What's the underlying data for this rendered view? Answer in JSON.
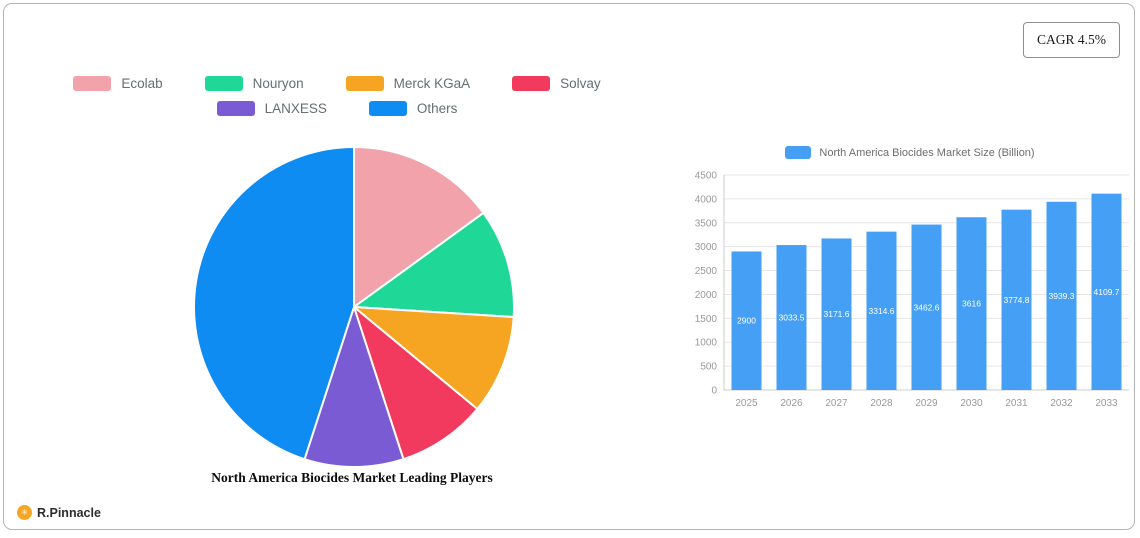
{
  "cagr": {
    "label": "CAGR 4.5%"
  },
  "logo": {
    "text": "R.Pinnacle",
    "icon_color": "#f5a623"
  },
  "chart_data": [
    {
      "type": "pie",
      "title": "North America Biocides Market Leading Players",
      "labels": [
        "Ecolab",
        "Nouryon",
        "Merck KGaA",
        "Solvay",
        "LANXESS",
        "Others"
      ],
      "values": [
        15,
        11,
        10,
        9,
        10,
        45
      ],
      "colors": [
        "#f2a2ab",
        "#1fd796",
        "#f5a522",
        "#f23a5f",
        "#7a5bd4",
        "#0e8cf2"
      ],
      "legend_position": "top",
      "legend_rows": [
        4,
        2
      ]
    },
    {
      "type": "bar",
      "legend": "North America Biocides Market  Size (Billion)",
      "categories": [
        "2025",
        "2026",
        "2027",
        "2028",
        "2029",
        "2030",
        "2031",
        "2032",
        "2033"
      ],
      "values": [
        2900,
        3033.5,
        3171.6,
        3314.6,
        3462.6,
        3616,
        3774.8,
        3939.3,
        4109.7
      ],
      "bar_labels": [
        "2900",
        "3033.5",
        "3171.6",
        "3314.6",
        "3462.6",
        "3616",
        "3774.8",
        "3939.3",
        "4109.7"
      ],
      "color": "#459ff5",
      "ylim": [
        0,
        4500
      ],
      "y_ticks": [
        0,
        500,
        1000,
        1500,
        2000,
        2500,
        3000,
        3500,
        4000,
        4500
      ],
      "grid": true,
      "legend_position": "top"
    }
  ]
}
